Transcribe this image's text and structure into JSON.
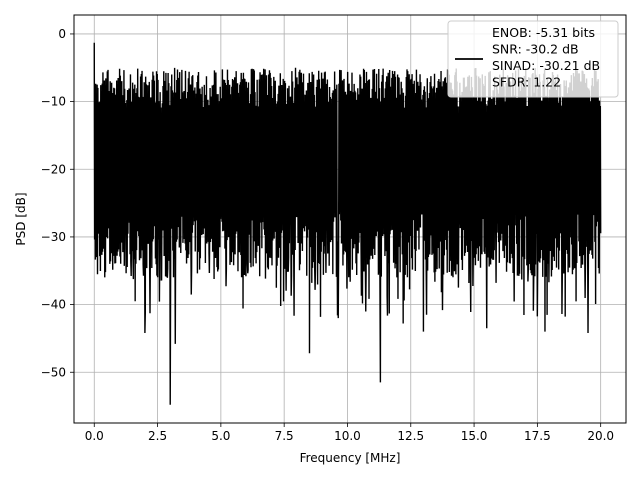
{
  "chart_data": {
    "type": "line",
    "title": "",
    "xlabel": "Frequency [MHz]",
    "ylabel": "PSD [dB]",
    "xlim": [
      -0.8,
      21.0
    ],
    "ylim": [
      -57.5,
      2.8
    ],
    "xticks": [
      0.0,
      2.5,
      5.0,
      7.5,
      10.0,
      12.5,
      15.0,
      17.5,
      20.0
    ],
    "xtick_labels": [
      "0.0",
      "2.5",
      "5.0",
      "7.5",
      "10.0",
      "12.5",
      "15.0",
      "17.5",
      "20.0"
    ],
    "yticks": [
      0,
      -10,
      -20,
      -30,
      -40,
      -50
    ],
    "ytick_labels": [
      "0",
      "−10",
      "−20",
      "−30",
      "−40",
      "−50"
    ],
    "grid": true,
    "legend_position": "top-right",
    "series": [
      {
        "name": "ENOB: -5.31 bits\nSNR: -30.2 dB\nSINAD: -30.21 dB\nSFDR: 1.22",
        "color": "#000000",
        "description_points": {
          "x_range": [
            0.0,
            20.0
          ],
          "noise_floor_band_db": [
            -33,
            -5
          ],
          "peak_max": {
            "x": 0.0,
            "y": -1.3
          },
          "notable_minima": [
            {
              "x": 3.0,
              "y": -54.8
            },
            {
              "x": 3.2,
              "y": -45.8
            },
            {
              "x": 2.0,
              "y": -44.2
            },
            {
              "x": 8.5,
              "y": -47.2
            },
            {
              "x": 11.3,
              "y": -51.5
            },
            {
              "x": 12.2,
              "y": -42.8
            },
            {
              "x": 13.0,
              "y": -44.0
            },
            {
              "x": 15.5,
              "y": -43.5
            },
            {
              "x": 17.8,
              "y": -44.0
            },
            {
              "x": 19.5,
              "y": -44.2
            }
          ]
        }
      }
    ]
  },
  "legend_lines": [
    "ENOB: -5.31 bits",
    "SNR: -30.2 dB",
    "SINAD: -30.21 dB",
    "SFDR: 1.22"
  ]
}
